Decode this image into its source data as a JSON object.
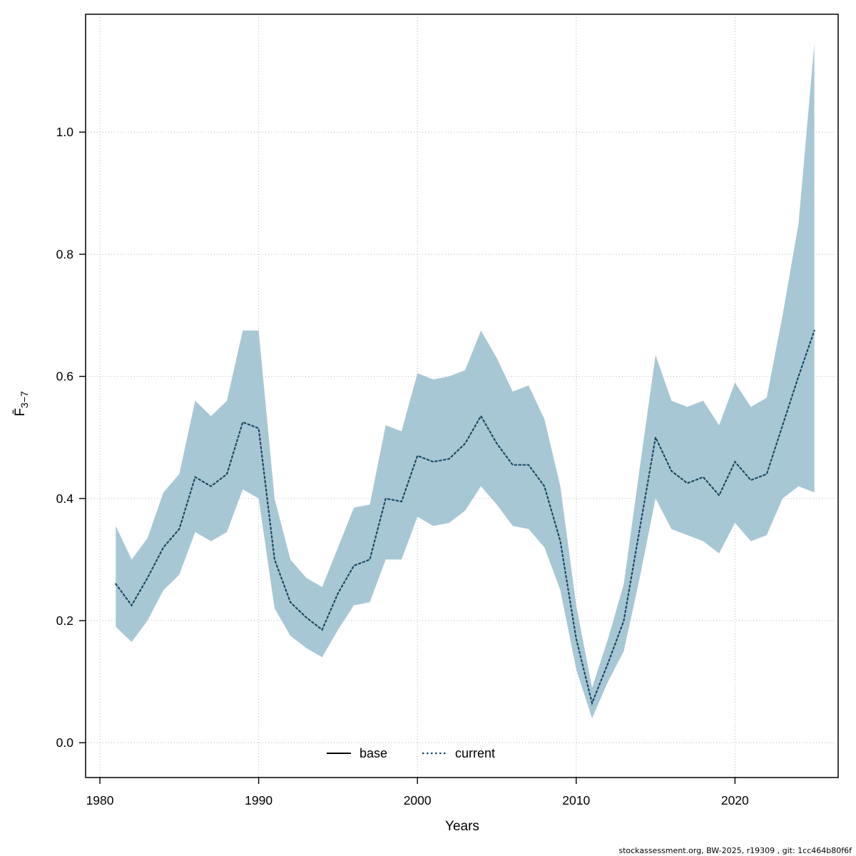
{
  "footer": {
    "text": "stockassessment.org, BW-2025, r19309 , git: 1cc464b80f6f"
  },
  "chart_data": {
    "type": "line",
    "title": "",
    "xlabel": "Years",
    "ylabel": "F̄3−7",
    "ylabel_main": "F̄",
    "ylabel_sub": "3−7",
    "xlim": [
      1979.1,
      2026.5
    ],
    "ylim": [
      -0.057,
      1.193
    ],
    "x_ticks": [
      1980,
      1990,
      2000,
      2010,
      2020
    ],
    "y_ticks": [
      0.0,
      0.2,
      0.4,
      0.6,
      0.8,
      1.0
    ],
    "grid": true,
    "legend_position": "bottom-center-inside",
    "band_color": "#a8c7d5",
    "line_color": "#1b4a60",
    "legend": [
      {
        "label": "base",
        "style": "solid",
        "color": "#000000"
      },
      {
        "label": "current",
        "style": "dotted",
        "color": "#1b4a60"
      }
    ],
    "series": [
      {
        "name": "current",
        "x": [
          1981,
          1982,
          1983,
          1984,
          1985,
          1986,
          1987,
          1988,
          1989,
          1990,
          1991,
          1992,
          1993,
          1994,
          1995,
          1996,
          1997,
          1998,
          1999,
          2000,
          2001,
          2002,
          2003,
          2004,
          2005,
          2006,
          2007,
          2008,
          2009,
          2010,
          2011,
          2012,
          2013,
          2014,
          2015,
          2016,
          2017,
          2018,
          2019,
          2020,
          2021,
          2022,
          2023,
          2024,
          2025
        ],
        "y": [
          0.26,
          0.225,
          0.27,
          0.32,
          0.35,
          0.435,
          0.42,
          0.44,
          0.525,
          0.515,
          0.3,
          0.23,
          0.205,
          0.185,
          0.245,
          0.29,
          0.3,
          0.4,
          0.395,
          0.47,
          0.46,
          0.465,
          0.49,
          0.535,
          0.49,
          0.455,
          0.455,
          0.42,
          0.33,
          0.17,
          0.065,
          0.13,
          0.2,
          0.35,
          0.5,
          0.445,
          0.425,
          0.435,
          0.405,
          0.46,
          0.43,
          0.44,
          0.52,
          0.6,
          0.675
        ],
        "lower": [
          0.19,
          0.165,
          0.2,
          0.25,
          0.275,
          0.345,
          0.33,
          0.345,
          0.415,
          0.4,
          0.22,
          0.175,
          0.155,
          0.14,
          0.185,
          0.225,
          0.23,
          0.3,
          0.3,
          0.37,
          0.355,
          0.36,
          0.38,
          0.42,
          0.39,
          0.355,
          0.35,
          0.32,
          0.25,
          0.12,
          0.04,
          0.1,
          0.15,
          0.27,
          0.4,
          0.35,
          0.34,
          0.33,
          0.31,
          0.36,
          0.33,
          0.34,
          0.4,
          0.42,
          0.41
        ],
        "upper": [
          0.355,
          0.3,
          0.335,
          0.41,
          0.44,
          0.56,
          0.535,
          0.56,
          0.675,
          0.675,
          0.4,
          0.3,
          0.27,
          0.255,
          0.32,
          0.385,
          0.39,
          0.52,
          0.51,
          0.605,
          0.595,
          0.6,
          0.61,
          0.675,
          0.63,
          0.575,
          0.585,
          0.53,
          0.42,
          0.225,
          0.09,
          0.17,
          0.26,
          0.45,
          0.635,
          0.56,
          0.55,
          0.56,
          0.52,
          0.59,
          0.55,
          0.565,
          0.7,
          0.85,
          1.145
        ]
      }
    ]
  }
}
